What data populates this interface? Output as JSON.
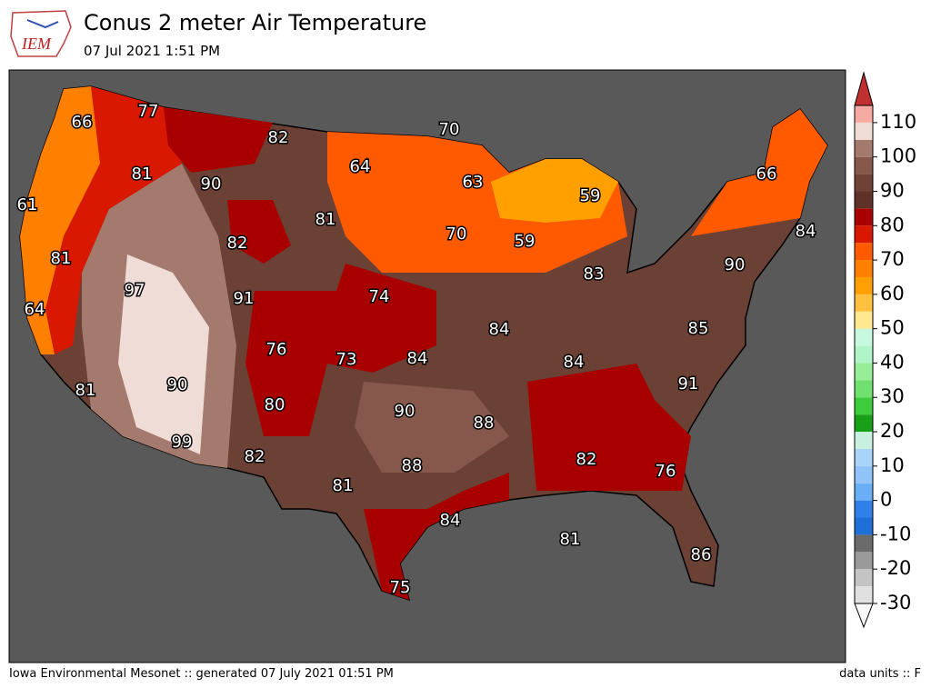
{
  "header": {
    "logo": "IEM",
    "title": "Conus 2 meter Air Temperature",
    "subtitle": "07 Jul 2021 1:51 PM"
  },
  "map": {
    "labels": [
      66,
      77,
      82,
      70,
      81,
      90,
      64,
      63,
      59,
      66,
      61,
      82,
      81,
      70,
      59,
      84,
      81,
      90,
      97,
      91,
      74,
      83,
      64,
      76,
      73,
      84,
      84,
      85,
      84,
      91,
      81,
      90,
      80,
      90,
      88,
      99,
      82,
      88,
      82,
      76,
      81,
      84,
      81,
      86,
      75
    ]
  },
  "colorbar": {
    "lim": [
      -30,
      115
    ],
    "step": 5,
    "ticks": [
      -30,
      -20,
      -10,
      0,
      10,
      20,
      30,
      40,
      50,
      60,
      70,
      80,
      90,
      100,
      110
    ],
    "colors": [
      "#e0e0e0",
      "#c4c4c4",
      "#9a9a9a",
      "#6b6b6b",
      "#1f6fd8",
      "#2f80e8",
      "#6aaef5",
      "#90c4f8",
      "#a8d4fa",
      "#c8f0e0",
      "#18a018",
      "#3ccc3c",
      "#70e070",
      "#98ee98",
      "#b0f5c8",
      "#c8f8e0",
      "#ffe890",
      "#ffc040",
      "#ffa000",
      "#ff8000",
      "#ff5a00",
      "#d81800",
      "#a80000",
      "#5e3228",
      "#6e4236",
      "#86584c",
      "#a47a6e",
      "#f0dcd6",
      "#f6aaa4",
      "#e87870"
    ],
    "under": "#f8f8f8",
    "over": "#c03030"
  },
  "footer": {
    "left": "Iowa Environmental Mesonet :: generated 07 July 2021 01:51 PM",
    "right": "data units :: F"
  }
}
